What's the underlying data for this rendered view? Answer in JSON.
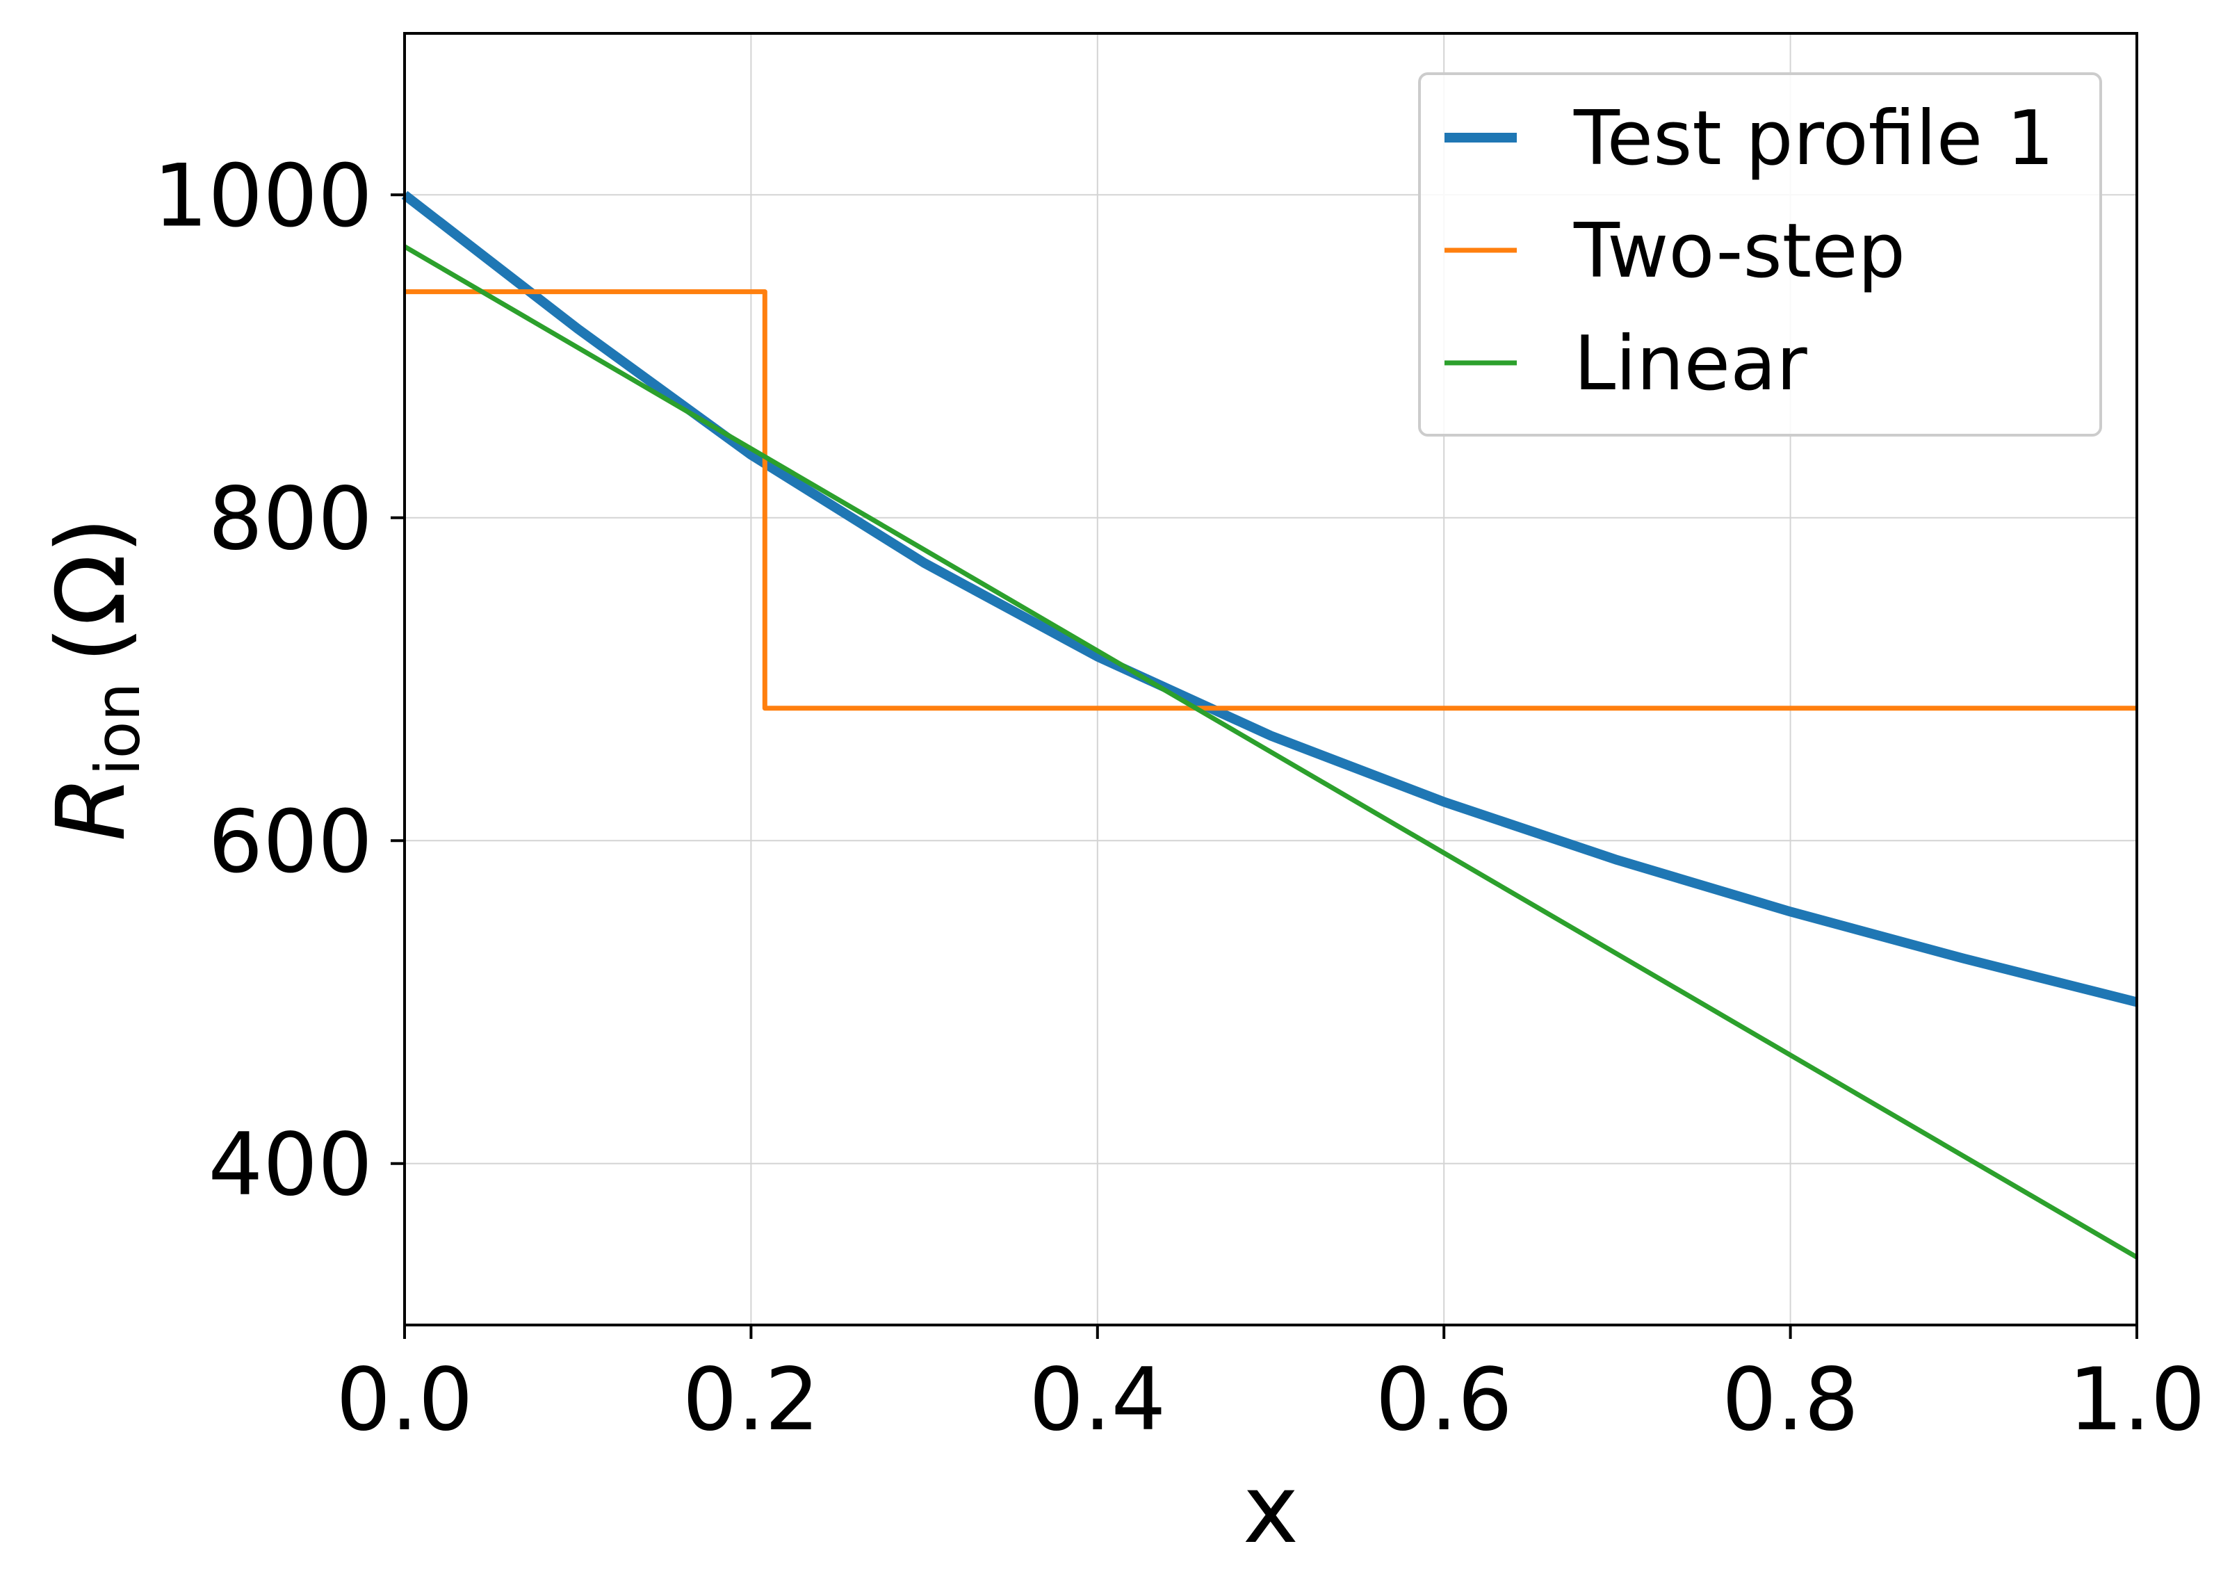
{
  "chart_data": {
    "type": "line",
    "xlabel": "x",
    "ylabel": {
      "symbol": "R",
      "subscript": "ion",
      "unit": "(Ω)"
    },
    "xlim": [
      0.0,
      1.0
    ],
    "ylim": [
      300,
      1100
    ],
    "xticks": [
      "0.0",
      "0.2",
      "0.4",
      "0.6",
      "0.8",
      "1.0"
    ],
    "yticks": [
      "400",
      "600",
      "800",
      "1000"
    ],
    "grid": true,
    "legend": {
      "placement": "top-right"
    },
    "series": [
      {
        "name": "Test profile 1",
        "color": "#1f77b4",
        "style": "thick",
        "x": [
          0.0,
          0.1,
          0.2,
          0.3,
          0.4,
          0.5,
          0.6,
          0.7,
          0.8,
          0.9,
          1.0
        ],
        "y": [
          1000,
          917,
          839,
          772,
          714,
          665,
          624,
          588,
          556,
          527,
          500
        ]
      },
      {
        "name": "Two-step",
        "color": "#ff7f0e",
        "style": "step",
        "x": [
          0.0,
          0.208,
          0.208,
          1.0
        ],
        "y": [
          940,
          940,
          682,
          682
        ]
      },
      {
        "name": "Linear",
        "color": "#2ca02c",
        "style": "thin",
        "x": [
          0.0,
          1.0
        ],
        "y": [
          968,
          342
        ]
      }
    ]
  }
}
